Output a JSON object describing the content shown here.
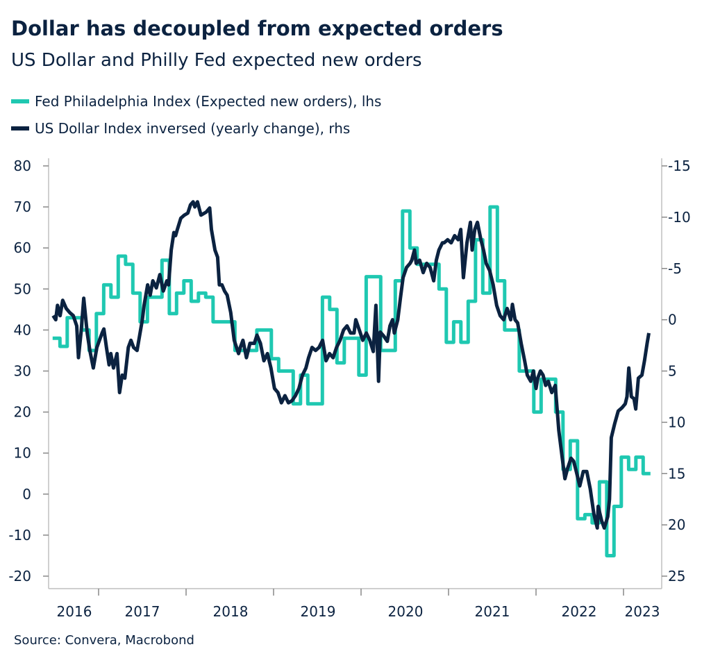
{
  "chart_data": {
    "type": "line",
    "title": "Dollar has decoupled from expected orders",
    "subtitle": "US Dollar and Philly Fed expected new orders",
    "source": "Source: Convera, Macrobond",
    "legend_position": "top-left",
    "grid": false,
    "colors": {
      "philly": "#1fc8b1",
      "dollar": "#0b2240"
    },
    "x_axis": {
      "type": "date",
      "range": [
        2016.43,
        2023.44
      ],
      "tick_labels": [
        "2016",
        "2017",
        "2018",
        "2019",
        "2020",
        "2021",
        "2022",
        "2023"
      ]
    },
    "y_left": {
      "range": [
        -20,
        80
      ],
      "ticks": [
        "80",
        "70",
        "60",
        "50",
        "40",
        "30",
        "20",
        "10",
        "0",
        "-10",
        "-20"
      ]
    },
    "y_right": {
      "range": [
        -15,
        25
      ],
      "inverted": true,
      "ticks": [
        "-15",
        "-10",
        "-5",
        "0",
        "5",
        "10",
        "15",
        "20",
        "25"
      ]
    },
    "series": [
      {
        "name": "Fed Philadelphia Index (Expected new orders), lhs",
        "axis": "left",
        "frequency": "monthly",
        "start": "2016-06",
        "values": [
          38,
          36,
          43,
          43,
          40,
          35,
          44,
          51,
          48,
          58,
          56,
          49,
          42,
          48,
          48,
          57,
          44,
          49,
          52,
          47,
          49,
          48,
          42,
          42,
          42,
          35,
          35,
          35,
          40,
          40,
          33,
          30,
          30,
          22,
          29,
          22,
          22,
          48,
          45,
          32,
          38,
          38,
          29,
          53,
          53,
          35,
          35,
          52,
          69,
          60,
          56,
          56,
          56,
          50,
          37,
          42,
          37,
          47,
          62,
          49,
          70,
          52,
          40,
          40,
          30,
          30,
          20,
          28,
          28,
          20,
          6,
          13,
          -6,
          -5,
          -7,
          3,
          -15,
          -3,
          9,
          6,
          9,
          5
        ]
      },
      {
        "name": "US Dollar Index inversed (yearly change), rhs",
        "axis": "right",
        "points": [
          [
            2016.48,
            -0.4
          ],
          [
            2016.51,
            0.0
          ],
          [
            2016.53,
            -1.4
          ],
          [
            2016.56,
            -0.4
          ],
          [
            2016.59,
            -1.9
          ],
          [
            2016.63,
            -1.1
          ],
          [
            2016.67,
            -0.7
          ],
          [
            2016.71,
            -0.4
          ],
          [
            2016.75,
            0.6
          ],
          [
            2016.77,
            3.7
          ],
          [
            2016.8,
            1.2
          ],
          [
            2016.83,
            -2.1
          ],
          [
            2016.87,
            1.3
          ],
          [
            2016.9,
            3.0
          ],
          [
            2016.94,
            4.7
          ],
          [
            2016.98,
            2.7
          ],
          [
            2017.04,
            1.3
          ],
          [
            2017.06,
            0.9
          ],
          [
            2017.09,
            2.7
          ],
          [
            2017.12,
            4.4
          ],
          [
            2017.14,
            3.3
          ],
          [
            2017.17,
            4.7
          ],
          [
            2017.21,
            3.3
          ],
          [
            2017.24,
            7.1
          ],
          [
            2017.27,
            5.4
          ],
          [
            2017.3,
            5.7
          ],
          [
            2017.34,
            2.7
          ],
          [
            2017.37,
            2.0
          ],
          [
            2017.4,
            2.7
          ],
          [
            2017.44,
            3.0
          ],
          [
            2017.5,
            0.0
          ],
          [
            2017.52,
            -1.4
          ],
          [
            2017.56,
            -3.4
          ],
          [
            2017.59,
            -2.4
          ],
          [
            2017.62,
            -3.8
          ],
          [
            2017.66,
            -3.1
          ],
          [
            2017.7,
            -4.4
          ],
          [
            2017.74,
            -2.8
          ],
          [
            2017.78,
            -3.8
          ],
          [
            2017.8,
            -3.4
          ],
          [
            2017.83,
            -6.8
          ],
          [
            2017.86,
            -8.5
          ],
          [
            2017.88,
            -8.2
          ],
          [
            2017.9,
            -8.8
          ],
          [
            2017.94,
            -9.9
          ],
          [
            2017.98,
            -10.2
          ],
          [
            2018.02,
            -10.4
          ],
          [
            2018.05,
            -11.2
          ],
          [
            2018.08,
            -11.5
          ],
          [
            2018.1,
            -11.0
          ],
          [
            2018.13,
            -11.5
          ],
          [
            2018.17,
            -10.2
          ],
          [
            2018.23,
            -10.5
          ],
          [
            2018.27,
            -10.9
          ],
          [
            2018.29,
            -8.8
          ],
          [
            2018.33,
            -6.8
          ],
          [
            2018.36,
            -6.1
          ],
          [
            2018.38,
            -3.4
          ],
          [
            2018.41,
            -3.4
          ],
          [
            2018.44,
            -2.8
          ],
          [
            2018.47,
            -2.4
          ],
          [
            2018.51,
            -0.7
          ],
          [
            2018.55,
            2.0
          ],
          [
            2018.6,
            3.3
          ],
          [
            2018.62,
            2.7
          ],
          [
            2018.65,
            2.0
          ],
          [
            2018.69,
            3.7
          ],
          [
            2018.73,
            2.3
          ],
          [
            2018.78,
            2.3
          ],
          [
            2018.81,
            1.5
          ],
          [
            2018.85,
            2.3
          ],
          [
            2018.89,
            4.0
          ],
          [
            2018.93,
            3.3
          ],
          [
            2018.97,
            4.7
          ],
          [
            2019.01,
            6.7
          ],
          [
            2019.05,
            7.1
          ],
          [
            2019.09,
            8.1
          ],
          [
            2019.13,
            7.4
          ],
          [
            2019.17,
            8.1
          ],
          [
            2019.21,
            7.9
          ],
          [
            2019.25,
            7.4
          ],
          [
            2019.29,
            6.7
          ],
          [
            2019.33,
            5.4
          ],
          [
            2019.37,
            4.7
          ],
          [
            2019.4,
            3.7
          ],
          [
            2019.44,
            2.7
          ],
          [
            2019.48,
            3.0
          ],
          [
            2019.52,
            2.7
          ],
          [
            2019.56,
            2.0
          ],
          [
            2019.6,
            4.0
          ],
          [
            2019.64,
            3.3
          ],
          [
            2019.68,
            3.7
          ],
          [
            2019.72,
            2.7
          ],
          [
            2019.76,
            2.0
          ],
          [
            2019.8,
            1.0
          ],
          [
            2019.84,
            0.6
          ],
          [
            2019.88,
            1.3
          ],
          [
            2019.92,
            1.3
          ],
          [
            2019.94,
            0.0
          ],
          [
            2019.98,
            1.0
          ],
          [
            2020.02,
            2.0
          ],
          [
            2020.06,
            1.3
          ],
          [
            2020.1,
            2.0
          ],
          [
            2020.14,
            3.1
          ],
          [
            2020.17,
            -1.4
          ],
          [
            2020.2,
            6.0
          ],
          [
            2020.22,
            1.2
          ],
          [
            2020.26,
            1.6
          ],
          [
            2020.3,
            2.1
          ],
          [
            2020.33,
            0.6
          ],
          [
            2020.36,
            0.0
          ],
          [
            2020.38,
            1.3
          ],
          [
            2020.42,
            0.0
          ],
          [
            2020.45,
            -2.1
          ],
          [
            2020.48,
            -4.1
          ],
          [
            2020.52,
            -5.1
          ],
          [
            2020.56,
            -5.5
          ],
          [
            2020.58,
            -5.8
          ],
          [
            2020.61,
            -6.8
          ],
          [
            2020.63,
            -5.5
          ],
          [
            2020.67,
            -5.8
          ],
          [
            2020.71,
            -4.6
          ],
          [
            2020.75,
            -5.5
          ],
          [
            2020.79,
            -5.1
          ],
          [
            2020.83,
            -3.8
          ],
          [
            2020.86,
            -5.8
          ],
          [
            2020.89,
            -6.8
          ],
          [
            2020.93,
            -7.5
          ],
          [
            2020.95,
            -7.5
          ],
          [
            2020.99,
            -7.8
          ],
          [
            2021.03,
            -7.5
          ],
          [
            2021.07,
            -8.2
          ],
          [
            2021.11,
            -7.8
          ],
          [
            2021.14,
            -8.8
          ],
          [
            2021.17,
            -4.1
          ],
          [
            2021.21,
            -7.5
          ],
          [
            2021.25,
            -9.5
          ],
          [
            2021.27,
            -6.8
          ],
          [
            2021.3,
            -8.8
          ],
          [
            2021.33,
            -9.5
          ],
          [
            2021.37,
            -7.8
          ],
          [
            2021.4,
            -6.8
          ],
          [
            2021.43,
            -5.5
          ],
          [
            2021.47,
            -4.8
          ],
          [
            2021.51,
            -3.4
          ],
          [
            2021.55,
            -1.4
          ],
          [
            2021.59,
            -0.4
          ],
          [
            2021.63,
            0.0
          ],
          [
            2021.67,
            -1.1
          ],
          [
            2021.71,
            0.0
          ],
          [
            2021.73,
            -1.5
          ],
          [
            2021.76,
            0.0
          ],
          [
            2021.79,
            0.3
          ],
          [
            2021.83,
            2.3
          ],
          [
            2021.87,
            4.0
          ],
          [
            2021.9,
            5.4
          ],
          [
            2021.94,
            6.0
          ],
          [
            2021.97,
            5.0
          ],
          [
            2022.0,
            6.7
          ],
          [
            2022.02,
            5.7
          ],
          [
            2022.05,
            5.0
          ],
          [
            2022.08,
            5.4
          ],
          [
            2022.11,
            6.4
          ],
          [
            2022.14,
            6.0
          ],
          [
            2022.18,
            7.1
          ],
          [
            2022.22,
            6.4
          ],
          [
            2022.26,
            10.8
          ],
          [
            2022.3,
            13.5
          ],
          [
            2022.33,
            15.5
          ],
          [
            2022.36,
            14.5
          ],
          [
            2022.4,
            13.5
          ],
          [
            2022.43,
            13.8
          ],
          [
            2022.46,
            14.8
          ],
          [
            2022.5,
            16.2
          ],
          [
            2022.54,
            14.8
          ],
          [
            2022.58,
            14.8
          ],
          [
            2022.62,
            16.5
          ],
          [
            2022.66,
            18.9
          ],
          [
            2022.7,
            20.3
          ],
          [
            2022.71,
            18.2
          ],
          [
            2022.75,
            19.6
          ],
          [
            2022.78,
            20.3
          ],
          [
            2022.82,
            19.2
          ],
          [
            2022.84,
            17.5
          ],
          [
            2022.86,
            11.5
          ],
          [
            2022.9,
            10.1
          ],
          [
            2022.94,
            8.9
          ],
          [
            2022.98,
            8.6
          ],
          [
            2023.02,
            8.2
          ],
          [
            2023.04,
            7.5
          ],
          [
            2023.06,
            4.7
          ],
          [
            2023.09,
            7.5
          ],
          [
            2023.12,
            7.7
          ],
          [
            2023.14,
            8.7
          ],
          [
            2023.17,
            5.7
          ],
          [
            2023.21,
            5.4
          ],
          [
            2023.24,
            4.0
          ],
          [
            2023.27,
            2.3
          ],
          [
            2023.29,
            1.3
          ]
        ]
      }
    ]
  }
}
